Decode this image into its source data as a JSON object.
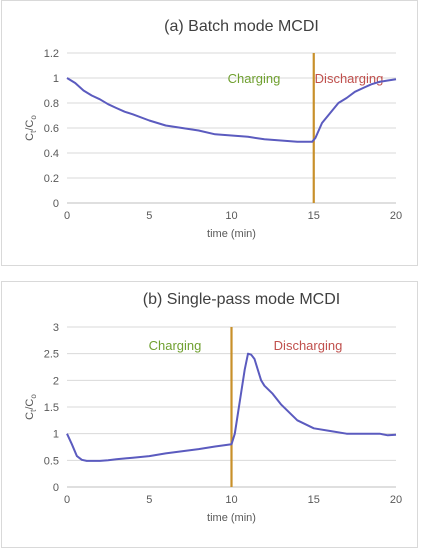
{
  "chart_data": [
    {
      "type": "line",
      "title": "(a) Batch mode MCDI",
      "xlabel": "time (min)",
      "ylabel": "Ct/Co",
      "xlim": [
        0,
        20
      ],
      "ylim": [
        0,
        1.2
      ],
      "xticks": [
        "0",
        "5",
        "10",
        "15",
        "20"
      ],
      "yticks": [
        "0",
        "0.2",
        "0.4",
        "0.6",
        "0.8",
        "1",
        "1.2"
      ],
      "grid": "horizontal",
      "annotations": {
        "charging": "Charging",
        "discharging": "Discharging"
      },
      "divider_x": 15,
      "colors": {
        "line": "#5b5bbf",
        "divider": "#c8902a",
        "charging": "#70a030",
        "discharging": "#c0504d"
      },
      "series": [
        {
          "x": [
            0,
            0.5,
            1,
            1.5,
            2,
            2.5,
            3,
            3.5,
            4,
            5,
            6,
            7,
            8,
            9,
            10,
            11,
            12,
            13,
            14,
            14.5,
            14.9,
            15.1,
            15.3,
            15.5,
            16,
            16.5,
            17,
            17.5,
            18,
            18.5,
            19,
            19.5,
            20
          ],
          "y": [
            1.0,
            0.96,
            0.9,
            0.86,
            0.83,
            0.79,
            0.76,
            0.73,
            0.71,
            0.66,
            0.62,
            0.6,
            0.58,
            0.55,
            0.54,
            0.53,
            0.51,
            0.5,
            0.49,
            0.49,
            0.49,
            0.52,
            0.58,
            0.64,
            0.72,
            0.8,
            0.84,
            0.89,
            0.92,
            0.95,
            0.97,
            0.98,
            0.99
          ]
        }
      ]
    },
    {
      "type": "line",
      "title": "(b) Single-pass mode MCDI",
      "xlabel": "time (min)",
      "ylabel": "Ct/Co",
      "xlim": [
        0,
        20
      ],
      "ylim": [
        0,
        3
      ],
      "xticks": [
        "0",
        "5",
        "10",
        "15",
        "20"
      ],
      "yticks": [
        "0",
        "0.5",
        "1",
        "1.5",
        "2",
        "2.5",
        "3"
      ],
      "grid": "horizontal",
      "annotations": {
        "charging": "Charging",
        "discharging": "Discharging"
      },
      "divider_x": 10,
      "colors": {
        "line": "#5b5bbf",
        "divider": "#c8902a",
        "charging": "#70a030",
        "discharging": "#c0504d"
      },
      "series": [
        {
          "x": [
            0,
            0.3,
            0.6,
            0.9,
            1.2,
            1.6,
            2,
            2.5,
            3,
            4,
            5,
            6,
            7,
            8,
            9,
            9.5,
            10,
            10.2,
            10.4,
            10.6,
            10.8,
            11,
            11.2,
            11.4,
            11.6,
            11.8,
            12,
            12.5,
            13,
            14,
            15,
            16,
            17,
            18,
            19,
            19.5,
            20
          ],
          "y": [
            1.0,
            0.8,
            0.58,
            0.51,
            0.49,
            0.49,
            0.49,
            0.5,
            0.52,
            0.55,
            0.58,
            0.63,
            0.67,
            0.71,
            0.76,
            0.78,
            0.8,
            1.0,
            1.4,
            1.8,
            2.2,
            2.5,
            2.48,
            2.4,
            2.2,
            2.0,
            1.9,
            1.75,
            1.55,
            1.25,
            1.1,
            1.05,
            1.0,
            1.0,
            1.0,
            0.97,
            0.98
          ]
        }
      ]
    }
  ]
}
